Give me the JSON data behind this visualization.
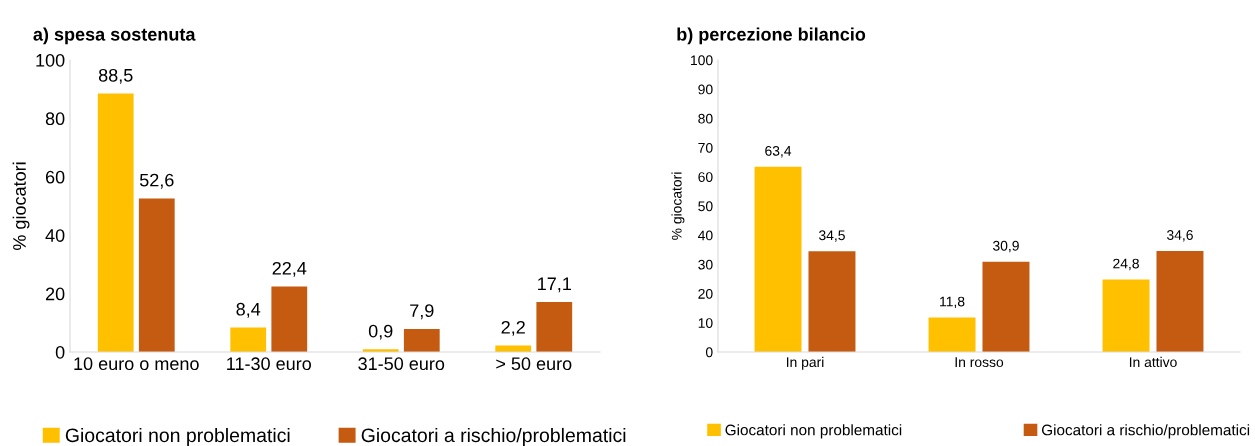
{
  "chart_data": [
    {
      "type": "bar",
      "title": "a) spesa sostenuta",
      "ylabel": "% giocatori",
      "categories": [
        "10 euro o meno",
        "11-30 euro",
        "31-50 euro",
        "> 50 euro"
      ],
      "series": [
        {
          "name": "Giocatori non problematici",
          "color": "#ffc000",
          "values": [
            88.5,
            8.4,
            0.9,
            2.2
          ],
          "value_labels": [
            "88,5",
            "8,4",
            "0,9",
            "2,2"
          ]
        },
        {
          "name": "Giocatori a rischio/problematici",
          "color": "#c55a11",
          "values": [
            52.6,
            22.4,
            7.9,
            17.1
          ],
          "value_labels": [
            "52,6",
            "22,4",
            "7,9",
            "17,1"
          ]
        }
      ],
      "ylim": [
        0,
        100
      ],
      "yticks": [
        0,
        20,
        40,
        60,
        80,
        100
      ],
      "grid": false,
      "legend": "bottom"
    },
    {
      "type": "bar",
      "title": "b) percezione bilancio",
      "ylabel": "% giocatori",
      "categories": [
        "In pari",
        "In rosso",
        "In attivo"
      ],
      "series": [
        {
          "name": "Giocatori non problematici",
          "color": "#ffc000",
          "values": [
            63.4,
            11.8,
            24.8
          ],
          "value_labels": [
            "63,4",
            "11,8",
            "24,8"
          ]
        },
        {
          "name": "Giocatori a rischio/problematici",
          "color": "#c55a11",
          "values": [
            34.5,
            30.9,
            34.6
          ],
          "value_labels": [
            "34,5",
            "30,9",
            "34,6"
          ]
        }
      ],
      "ylim": [
        0,
        100
      ],
      "yticks": [
        0,
        10,
        20,
        30,
        40,
        50,
        60,
        70,
        80,
        90,
        100
      ],
      "grid": false,
      "legend": "bottom"
    }
  ]
}
